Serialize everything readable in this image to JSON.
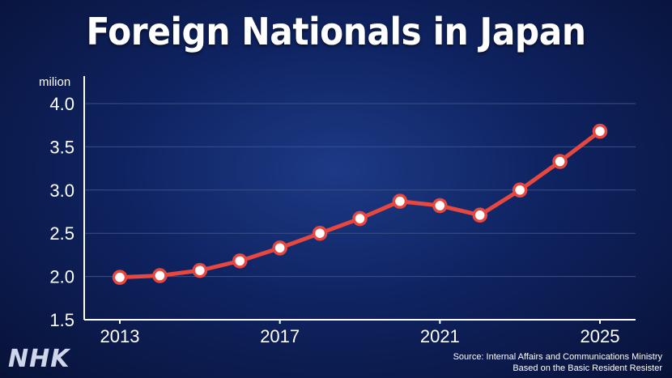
{
  "title": "Foreign Nationals in Japan",
  "logo": "NHK",
  "source_line1": "Source: Internal Affairs and Communications Ministry",
  "source_line2": "Based on the Basic Resident Resister",
  "colors": {
    "line": "#e8473f",
    "marker_fill": "#ffffff",
    "grid": "#3b4f86",
    "axis": "#ffffff",
    "text": "#ffffff"
  },
  "chart_data": {
    "type": "line",
    "title": "Foreign Nationals in Japan",
    "ylabel": "milion",
    "xlabel": "",
    "x": [
      2013,
      2014,
      2015,
      2016,
      2017,
      2018,
      2019,
      2020,
      2021,
      2022,
      2023,
      2024,
      2025
    ],
    "series": [
      {
        "values": [
          1.99,
          2.01,
          2.07,
          2.18,
          2.33,
          2.5,
          2.67,
          2.87,
          2.82,
          2.71,
          3.0,
          3.33,
          3.68
        ]
      }
    ],
    "ylim": [
      1.5,
      4.0
    ],
    "yticks": [
      "1.5",
      "2.0",
      "2.5",
      "3.0",
      "3.5",
      "4.0"
    ],
    "xticks": [
      "2013",
      "2017",
      "2021",
      "2025"
    ],
    "grid": true
  }
}
